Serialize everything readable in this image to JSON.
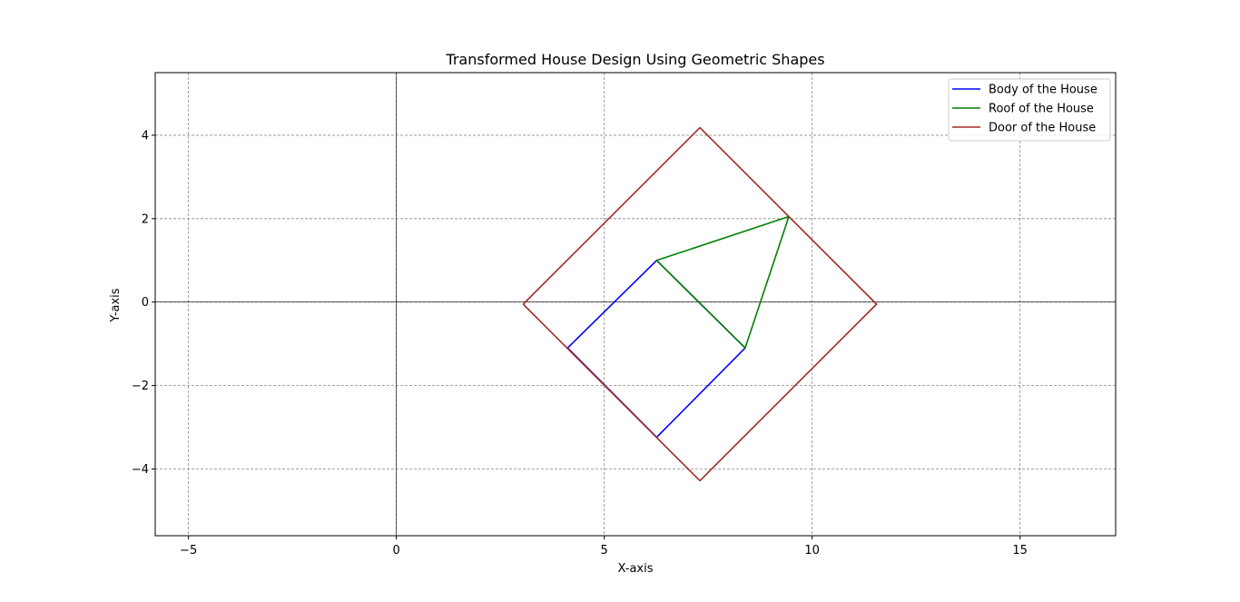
{
  "chart_data": {
    "type": "line",
    "title": "Transformed House Design Using Geometric Shapes",
    "xlabel": "X-axis",
    "ylabel": "Y-axis",
    "xlim": [
      -5.8,
      17.3
    ],
    "ylim": [
      -5.6,
      5.5
    ],
    "xticks": [
      -5,
      0,
      5,
      10,
      15
    ],
    "yticks": [
      -4,
      -2,
      0,
      2,
      4
    ],
    "xtick_labels": [
      "−5",
      "0",
      "5",
      "10",
      "15"
    ],
    "ytick_labels": [
      "−4",
      "−2",
      "0",
      "2",
      "4"
    ],
    "grid": true,
    "reference_lines": {
      "x": 0,
      "y": 0
    },
    "legend_position": "top-right",
    "series": [
      {
        "name": "Body of the House",
        "color": "#0000ff",
        "x": [
          4.12,
          6.26,
          8.39,
          6.26,
          4.12
        ],
        "y": [
          -1.1,
          -3.24,
          -1.1,
          1.0,
          -1.1
        ]
      },
      {
        "name": "Roof of the House",
        "color": "#008000",
        "x": [
          6.26,
          8.39,
          9.44,
          6.26
        ],
        "y": [
          1.0,
          -1.1,
          2.05,
          1.0
        ]
      },
      {
        "name": "Door of the House",
        "color": "#a52a2a",
        "x": [
          3.05,
          7.3,
          11.55,
          7.3,
          3.05
        ],
        "y": [
          -0.05,
          -4.28,
          -0.05,
          4.18,
          -0.05
        ]
      }
    ]
  }
}
